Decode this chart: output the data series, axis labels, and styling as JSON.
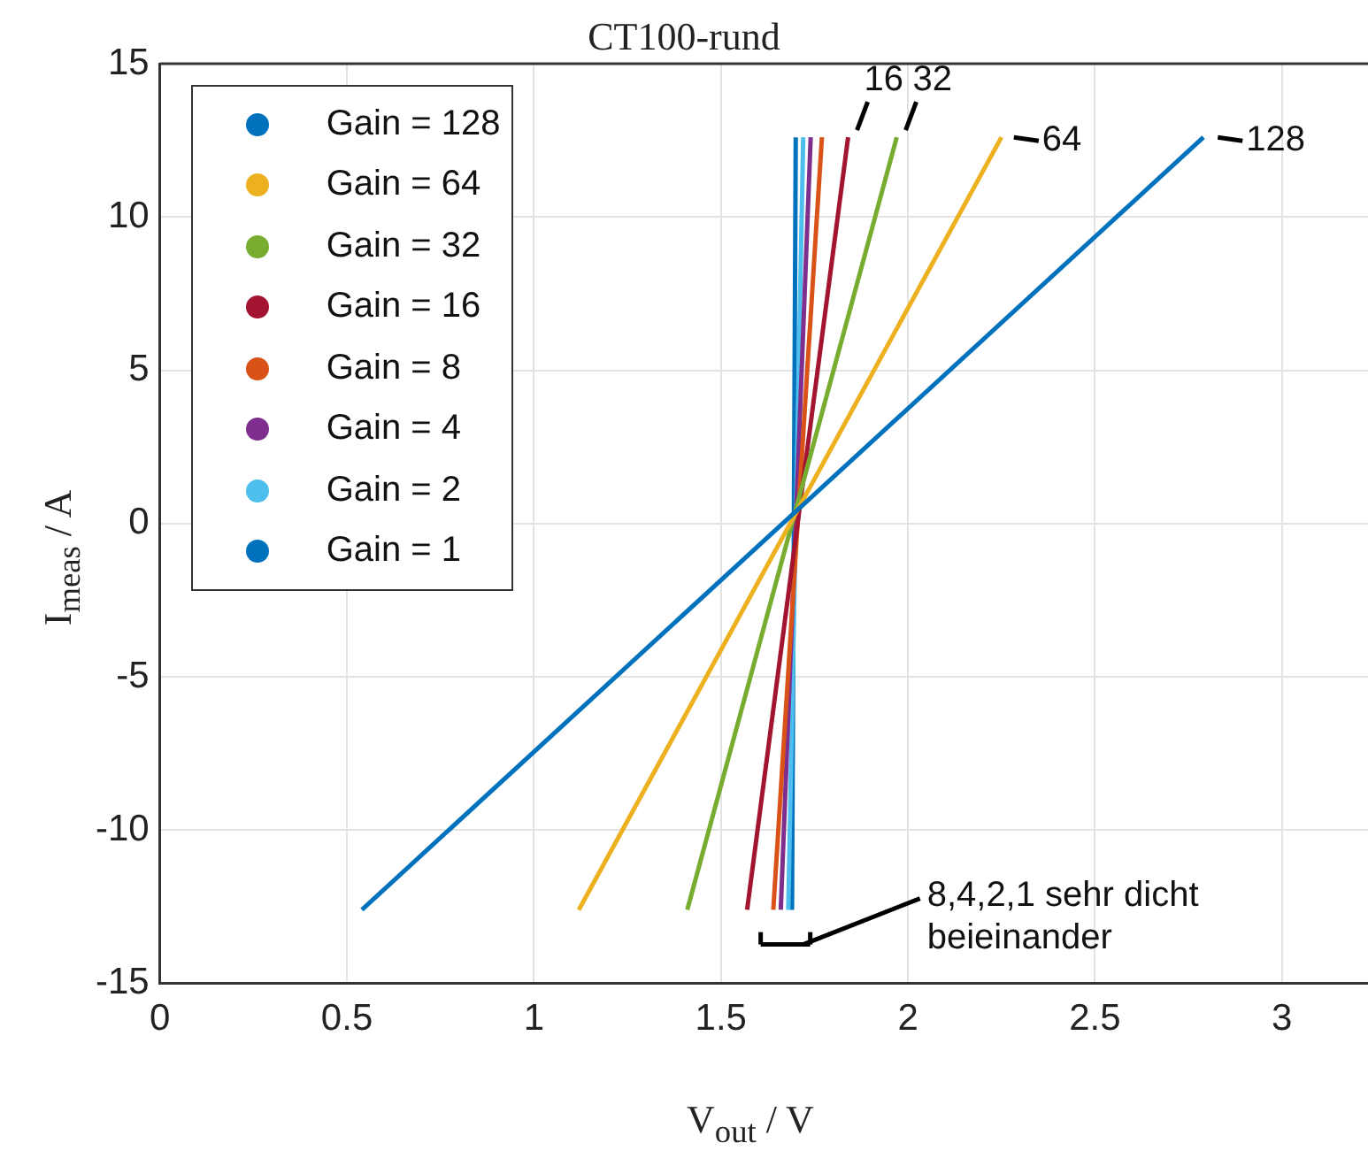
{
  "chart_data": {
    "type": "line",
    "title": "CT100-rund",
    "xlabel": "V$_{out}$ / V",
    "ylabel": "I$_{meas}$ / A",
    "xlim": [
      0,
      3.23
    ],
    "xticks": [
      0,
      0.5,
      1,
      1.5,
      2,
      2.5,
      3
    ],
    "ylim": [
      -15,
      15
    ],
    "yticks": [
      -15,
      -10,
      -5,
      0,
      5,
      10,
      15
    ],
    "grid": true,
    "legend": "top left",
    "marker": "none",
    "line_style": "solid",
    "series": [
      {
        "name": "Gain = 128",
        "color": "#0072bd",
        "x": [
          0.54,
          2.79
        ],
        "values": [
          -12.6,
          12.6
        ]
      },
      {
        "name": "Gain = 64",
        "color": "#edb120",
        "x": [
          1.12,
          2.25
        ],
        "values": [
          -12.6,
          12.6
        ]
      },
      {
        "name": "Gain = 32",
        "color": "#77ac30",
        "x": [
          1.41,
          1.97
        ],
        "values": [
          -12.6,
          12.6
        ]
      },
      {
        "name": "Gain = 16",
        "color": "#a2142f",
        "x": [
          1.57,
          1.84
        ],
        "values": [
          -12.6,
          12.6
        ]
      },
      {
        "name": "Gain = 8",
        "color": "#d95319",
        "x": [
          1.64,
          1.77
        ],
        "values": [
          -12.6,
          12.6
        ]
      },
      {
        "name": "Gain = 4",
        "color": "#7e2f8e",
        "x": [
          1.66,
          1.74
        ],
        "values": [
          -12.6,
          12.6
        ]
      },
      {
        "name": "Gain = 2",
        "color": "#4dbeee",
        "x": [
          1.68,
          1.72
        ],
        "values": [
          -12.6,
          12.6
        ]
      },
      {
        "name": "Gain = 1",
        "color": "#0072bd",
        "x": [
          1.69,
          1.7
        ],
        "values": [
          -12.6,
          12.6
        ]
      }
    ],
    "annotations": [
      {
        "text": "128",
        "x": 2.8,
        "y": 12.6
      },
      {
        "text": "64",
        "x": 2.255,
        "y": 12.6
      },
      {
        "text": "32",
        "x": 1.975,
        "y": 12.6
      },
      {
        "text": "16",
        "x": 1.845,
        "y": 12.6
      },
      "8,4,2,1 sehr dicht beieinander"
    ]
  }
}
